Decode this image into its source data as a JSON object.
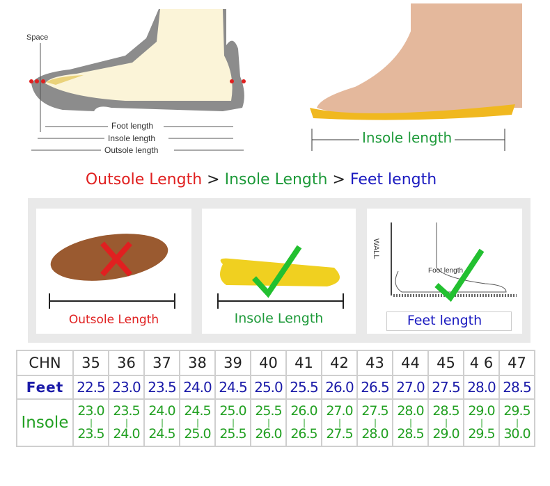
{
  "diagram": {
    "space_label": "Space",
    "foot_length": "Foot length",
    "insole_length": "Insole length",
    "outsole_length": "Outsole length"
  },
  "photo": {
    "insole_length": "Insole length"
  },
  "headline": {
    "outsole": "Outsole Length",
    "gt1": " > ",
    "insole": "Insole Length",
    "gt2": " > ",
    "feet": "Feet length",
    "colors": {
      "outsole": "#e02020",
      "insole": "#1e9a3a",
      "feet": "#1a1ac0"
    }
  },
  "cards": [
    {
      "caption": "Outsole Length",
      "mark": "cross-icon",
      "color": "#e02020"
    },
    {
      "caption": "Insole Length",
      "mark": "check-icon",
      "color": "#1e9a3a"
    },
    {
      "caption": "Feet length",
      "mark": "check-icon",
      "color": "#1a1ac0",
      "wall_label": "WALL",
      "foot_label": "Foot length"
    }
  ],
  "table": {
    "labels": {
      "chn": "CHN",
      "feet": "Feet",
      "insole": "Insole"
    },
    "chn": [
      "35",
      "36",
      "37",
      "38",
      "39",
      "40",
      "41",
      "42",
      "43",
      "44",
      "45",
      "4 6",
      "47"
    ],
    "feet": [
      "22.5",
      "23.0",
      "23.5",
      "24.0",
      "24.5",
      "25.0",
      "25.5",
      "26.0",
      "26.5",
      "27.0",
      "27.5",
      "28.0",
      "28.5"
    ],
    "insole_min": [
      "23.0",
      "23.5",
      "24.0",
      "24.5",
      "25.0",
      "25.5",
      "26.0",
      "27.0",
      "27.5",
      "28.0",
      "28.5",
      "29.0",
      "29.5"
    ],
    "insole_max": [
      "23.5",
      "24.0",
      "24.5",
      "25.0",
      "25.5",
      "26.0",
      "26.5",
      "27.5",
      "28.0",
      "28.5",
      "29.0",
      "29.5",
      "30.0"
    ]
  }
}
